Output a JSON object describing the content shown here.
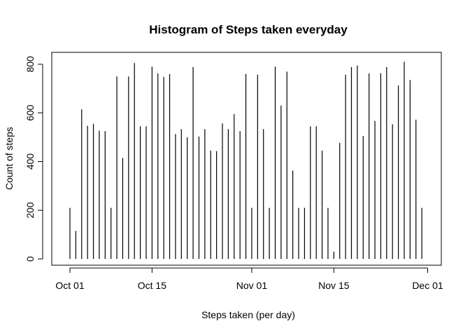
{
  "chart_data": {
    "type": "bar",
    "title": "Histogram of Steps taken everyday",
    "xlabel": "Steps taken (per day)",
    "ylabel": "Count of steps",
    "ylim": [
      0,
      810
    ],
    "yticks": [
      0,
      200,
      400,
      600,
      800
    ],
    "xlim": [
      "2012-10-01",
      "2012-11-30"
    ],
    "xticks": [
      {
        "date": "2012-10-01",
        "label": "Oct 01"
      },
      {
        "date": "2012-10-15",
        "label": "Oct 15"
      },
      {
        "date": "2012-11-01",
        "label": "Nov 01"
      },
      {
        "date": "2012-11-15",
        "label": "Nov 15"
      },
      {
        "date": "2012-12-01",
        "label": "Dec 01"
      }
    ],
    "x": [
      "2012-10-01",
      "2012-10-02",
      "2012-10-03",
      "2012-10-04",
      "2012-10-05",
      "2012-10-06",
      "2012-10-07",
      "2012-10-08",
      "2012-10-09",
      "2012-10-10",
      "2012-10-11",
      "2012-10-12",
      "2012-10-13",
      "2012-10-14",
      "2012-10-15",
      "2012-10-16",
      "2012-10-17",
      "2012-10-18",
      "2012-10-19",
      "2012-10-20",
      "2012-10-21",
      "2012-10-22",
      "2012-10-23",
      "2012-10-24",
      "2012-10-25",
      "2012-10-26",
      "2012-10-27",
      "2012-10-28",
      "2012-10-29",
      "2012-10-30",
      "2012-10-31",
      "2012-11-01",
      "2012-11-02",
      "2012-11-03",
      "2012-11-04",
      "2012-11-05",
      "2012-11-06",
      "2012-11-07",
      "2012-11-08",
      "2012-11-09",
      "2012-11-10",
      "2012-11-11",
      "2012-11-12",
      "2012-11-13",
      "2012-11-14",
      "2012-11-15",
      "2012-11-16",
      "2012-11-17",
      "2012-11-18",
      "2012-11-19",
      "2012-11-20",
      "2012-11-21",
      "2012-11-22",
      "2012-11-23",
      "2012-11-24",
      "2012-11-25",
      "2012-11-26",
      "2012-11-27",
      "2012-11-28",
      "2012-11-29",
      "2012-11-30"
    ],
    "values": [
      210,
      115,
      615,
      547,
      555,
      527,
      525,
      210,
      750,
      415,
      750,
      805,
      545,
      545,
      790,
      762,
      748,
      760,
      513,
      533,
      500,
      788,
      503,
      533,
      445,
      443,
      557,
      533,
      595,
      525,
      760,
      210,
      757,
      533,
      210,
      790,
      630,
      770,
      363,
      210,
      210,
      545,
      545,
      445,
      210,
      30,
      477,
      757,
      788,
      795,
      505,
      762,
      567,
      763,
      788,
      553,
      713,
      810,
      735,
      572,
      210
    ]
  }
}
